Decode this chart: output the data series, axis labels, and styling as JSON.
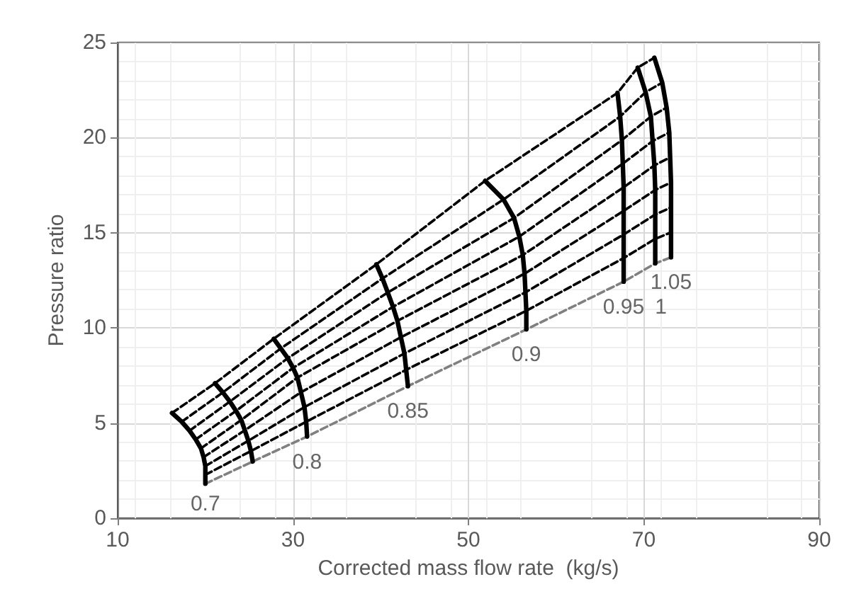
{
  "chart_data": {
    "type": "line",
    "xlabel": "Corrected mass flow rate  (kg/s)",
    "ylabel": "Pressure ratio",
    "xlim": [
      10,
      90
    ],
    "xticks": [
      10,
      30,
      50,
      70,
      90
    ],
    "ylim": [
      0,
      25
    ],
    "yticks": [
      0,
      5,
      10,
      15,
      20,
      25
    ],
    "grid": true,
    "marker": "none",
    "series": [
      {
        "color": "#000000",
        "line_style": "solid",
        "x": [
          16.2,
          17.3,
          18.2,
          18.9,
          19.5,
          19.8,
          20.0,
          20.0,
          20.0
        ],
        "values": [
          5.53,
          5.07,
          4.6,
          4.14,
          3.67,
          3.21,
          2.74,
          2.28,
          1.81
        ]
      },
      {
        "color": "#000000",
        "line_style": "solid",
        "x": [
          21.1,
          22.0,
          22.8,
          23.5,
          24.1,
          24.5,
          24.9,
          25.2,
          25.4
        ],
        "values": [
          7.09,
          6.61,
          6.13,
          5.64,
          5.16,
          4.62,
          4.07,
          3.53,
          2.98
        ]
      },
      {
        "color": "#000000",
        "line_style": "solid",
        "x": [
          27.8,
          28.6,
          29.4,
          30.0,
          30.5,
          30.9,
          31.3,
          31.5,
          31.6
        ],
        "values": [
          9.43,
          8.92,
          8.41,
          7.9,
          7.39,
          6.62,
          5.84,
          5.07,
          4.29
        ]
      },
      {
        "color": "#000000",
        "line_style": "solid",
        "x": [
          39.5,
          40.2,
          40.8,
          41.4,
          41.9,
          42.3,
          42.7,
          42.9,
          43.1
        ],
        "values": [
          13.34,
          12.6,
          11.86,
          11.11,
          10.37,
          9.51,
          8.66,
          7.8,
          6.94
        ]
      },
      {
        "color": "#000000",
        "line_style": "solid",
        "x": [
          51.9,
          54.0,
          55.2,
          55.8,
          56.2,
          56.4,
          56.5,
          56.6,
          56.6
        ],
        "values": [
          17.73,
          16.75,
          15.78,
          14.8,
          13.83,
          12.85,
          11.87,
          10.9,
          9.92
        ]
      },
      {
        "color": "#000000",
        "line_style": "solid",
        "x": [
          67.0,
          67.3,
          67.5,
          67.6,
          67.7,
          67.7,
          67.7,
          67.7,
          67.7
        ],
        "values": [
          22.35,
          21.11,
          19.87,
          18.63,
          17.39,
          16.15,
          14.91,
          13.67,
          12.43
        ]
      },
      {
        "color": "#000000",
        "line_style": "solid",
        "x": [
          69.3,
          70.2,
          70.8,
          71.0,
          71.2,
          71.3,
          71.3,
          71.3,
          71.3
        ],
        "values": [
          23.68,
          22.39,
          21.11,
          19.82,
          18.54,
          17.25,
          15.96,
          14.68,
          13.39
        ]
      },
      {
        "color": "#000000",
        "line_style": "solid",
        "x": [
          71.2,
          72.1,
          72.6,
          72.9,
          73.0,
          73.1,
          73.1,
          73.1,
          73.1
        ],
        "values": [
          24.2,
          22.89,
          21.58,
          20.27,
          18.96,
          17.64,
          16.33,
          15.02,
          13.71
        ]
      },
      {
        "color": "#000000",
        "line_style": "dashed",
        "x": [
          16.2,
          21.1,
          27.8,
          39.5,
          51.9,
          67.0,
          69.3,
          71.2
        ],
        "values": [
          5.53,
          7.09,
          9.43,
          13.34,
          17.73,
          22.35,
          23.68,
          24.2
        ]
      },
      {
        "color": "#000000",
        "line_style": "dashed",
        "x": [
          17.3,
          22.0,
          28.6,
          40.2,
          54.0,
          67.3,
          70.2,
          72.1
        ],
        "values": [
          5.07,
          6.61,
          8.92,
          12.6,
          16.75,
          21.11,
          22.39,
          22.89
        ]
      },
      {
        "color": "#000000",
        "line_style": "dashed",
        "x": [
          18.2,
          22.8,
          29.4,
          40.8,
          55.2,
          67.5,
          70.8,
          72.6
        ],
        "values": [
          4.6,
          6.13,
          8.41,
          11.86,
          15.78,
          19.87,
          21.11,
          21.58
        ]
      },
      {
        "color": "#000000",
        "line_style": "dashed",
        "x": [
          18.9,
          23.5,
          30.0,
          41.4,
          55.8,
          67.6,
          71.0,
          72.9
        ],
        "values": [
          4.14,
          5.64,
          7.9,
          11.11,
          14.8,
          18.63,
          19.82,
          20.27
        ]
      },
      {
        "color": "#000000",
        "line_style": "dashed",
        "x": [
          19.5,
          24.1,
          30.5,
          41.9,
          56.2,
          67.7,
          71.2,
          73.0
        ],
        "values": [
          3.67,
          5.16,
          7.39,
          10.37,
          13.83,
          17.39,
          18.54,
          18.96
        ]
      },
      {
        "color": "#000000",
        "line_style": "dashed",
        "x": [
          19.8,
          24.5,
          30.9,
          42.3,
          56.4,
          67.7,
          71.3,
          73.1
        ],
        "values": [
          3.21,
          4.62,
          6.62,
          9.51,
          12.85,
          16.15,
          17.25,
          17.64
        ]
      },
      {
        "color": "#000000",
        "line_style": "dashed",
        "x": [
          20.0,
          24.9,
          31.3,
          42.7,
          56.5,
          67.7,
          71.3,
          73.1
        ],
        "values": [
          2.74,
          4.07,
          5.84,
          8.66,
          11.87,
          14.91,
          15.96,
          16.33
        ]
      },
      {
        "color": "#000000",
        "line_style": "dashed",
        "x": [
          20.0,
          25.2,
          31.5,
          42.9,
          56.6,
          67.7,
          71.3,
          73.1
        ],
        "values": [
          2.28,
          3.53,
          5.07,
          7.8,
          10.9,
          13.67,
          14.68,
          15.02
        ]
      },
      {
        "color": "#808080",
        "line_style": "dashed",
        "x": [
          20.0,
          25.4,
          31.6,
          43.1,
          56.6,
          67.7,
          71.3,
          73.1
        ],
        "values": [
          1.81,
          2.98,
          4.29,
          6.94,
          9.92,
          12.43,
          13.39,
          13.71
        ]
      }
    ],
    "annotations": [
      {
        "text": "0.7",
        "x": 20.0,
        "y": 1.81
      },
      {
        "text": "0.8",
        "x": 31.6,
        "y": 4.29
      },
      {
        "text": "0.85",
        "x": 43.1,
        "y": 6.94
      },
      {
        "text": "0.9",
        "x": 56.6,
        "y": 9.92
      },
      {
        "text": "0.95",
        "x": 67.7,
        "y": 12.43
      },
      {
        "text": "1",
        "x": 71.3,
        "y": 13.39
      },
      {
        "text": "1.05",
        "x": 73.1,
        "y": 13.71
      }
    ]
  }
}
